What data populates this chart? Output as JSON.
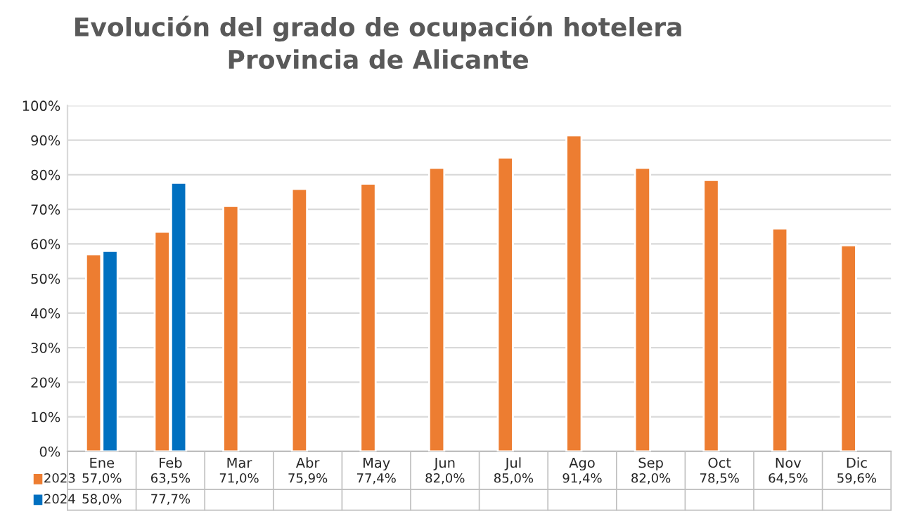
{
  "chart_data": {
    "type": "bar",
    "title": "Evolución del grado de ocupación hotelera\nProvincia de Alicante",
    "categories": [
      "Ene",
      "Feb",
      "Mar",
      "Abr",
      "May",
      "Jun",
      "Jul",
      "Ago",
      "Sep",
      "Oct",
      "Nov",
      "Dic"
    ],
    "series": [
      {
        "name": "2023",
        "color": "#ed7d31",
        "values": [
          57.0,
          63.5,
          71.0,
          75.9,
          77.4,
          82.0,
          85.0,
          91.4,
          82.0,
          78.5,
          64.5,
          59.6
        ],
        "value_labels": [
          "57,0%",
          "63,5%",
          "71,0%",
          "75,9%",
          "77,4%",
          "82,0%",
          "85,0%",
          "91,4%",
          "82,0%",
          "78,5%",
          "64,5%",
          "59,6%"
        ]
      },
      {
        "name": "2024",
        "color": "#0070c0",
        "values": [
          58.0,
          77.7,
          null,
          null,
          null,
          null,
          null,
          null,
          null,
          null,
          null,
          null
        ],
        "value_labels": [
          "58,0%",
          "77,7%",
          null,
          null,
          null,
          null,
          null,
          null,
          null,
          null,
          null,
          null
        ]
      }
    ],
    "ylim": [
      0,
      100
    ],
    "yticks": [
      {
        "value": 0,
        "label": "0%"
      },
      {
        "value": 10,
        "label": "10%"
      },
      {
        "value": 20,
        "label": "20%"
      },
      {
        "value": 30,
        "label": "30%"
      },
      {
        "value": 40,
        "label": "40%"
      },
      {
        "value": 50,
        "label": "50%"
      },
      {
        "value": 60,
        "label": "60%"
      },
      {
        "value": 70,
        "label": "70%"
      },
      {
        "value": 80,
        "label": "80%"
      },
      {
        "value": 90,
        "label": "90%"
      },
      {
        "value": 100,
        "label": "100%"
      }
    ],
    "grid": "y",
    "legend": "bottom"
  }
}
